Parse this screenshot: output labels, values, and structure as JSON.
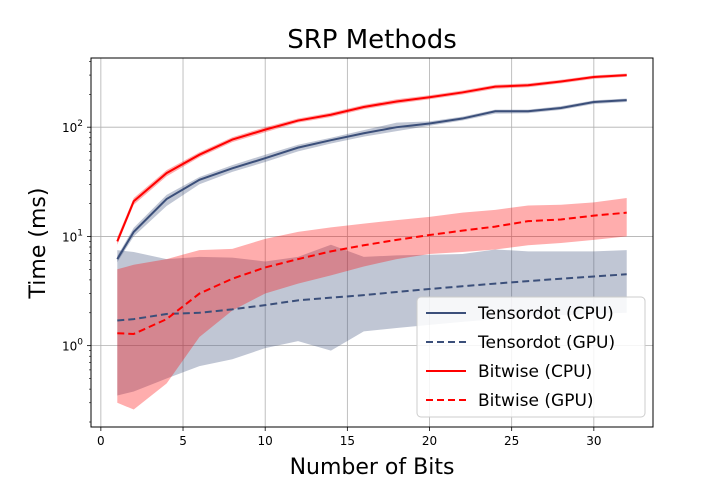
{
  "chart_data": {
    "type": "line",
    "title": "SRP Methods",
    "xlabel": "Number of Bits",
    "ylabel": "Time (ms)",
    "xlim": [
      -0.6,
      33.6
    ],
    "ylim": [
      0.18,
      430
    ],
    "yscale": "log",
    "grid": true,
    "legend_position": "lower-right",
    "x_ticks": [
      0,
      5,
      10,
      15,
      20,
      25,
      30
    ],
    "x_tick_labels": [
      "0",
      "5",
      "10",
      "15",
      "20",
      "25",
      "30"
    ],
    "y_ticks": [
      1,
      10,
      100
    ],
    "y_tick_base": "10",
    "y_tick_exponents": [
      "0",
      "1",
      "2"
    ],
    "x": [
      1,
      2,
      4,
      6,
      8,
      10,
      12,
      14,
      16,
      18,
      20,
      22,
      24,
      26,
      28,
      30,
      32
    ],
    "series": [
      {
        "name": "Tensordot (CPU)",
        "color": "#3b4f7a",
        "style": "solid",
        "values": [
          6.2,
          11,
          22,
          33,
          42,
          52,
          65,
          76,
          88,
          100,
          108,
          120,
          140,
          140,
          150,
          170,
          177
        ],
        "lower": [
          5.8,
          10,
          19,
          30,
          39,
          48,
          60,
          71,
          82,
          92,
          103,
          115,
          133,
          134,
          144,
          163,
          170
        ],
        "upper": [
          6.6,
          12,
          24,
          35,
          45,
          56,
          69,
          80,
          94,
          110,
          113,
          125,
          145,
          145,
          156,
          176,
          183
        ]
      },
      {
        "name": "Tensordot (GPU)",
        "color": "#3b4f7a",
        "style": "dashed",
        "values": [
          1.7,
          1.75,
          1.95,
          2.0,
          2.15,
          2.35,
          2.6,
          2.75,
          2.9,
          3.1,
          3.3,
          3.5,
          3.7,
          3.9,
          4.1,
          4.3,
          4.5
        ],
        "lower": [
          0.35,
          0.38,
          0.5,
          0.65,
          0.75,
          0.95,
          1.1,
          0.9,
          1.35,
          1.45,
          1.55,
          1.65,
          1.75,
          1.85,
          1.9,
          1.95,
          2.0
        ],
        "upper": [
          7.5,
          7.2,
          6.2,
          6.5,
          6.4,
          5.9,
          6.5,
          8.4,
          6.5,
          6.7,
          6.8,
          6.9,
          7.6,
          7.3,
          7.3,
          7.3,
          7.5
        ]
      },
      {
        "name": "Bitwise (CPU)",
        "color": "#ff0000",
        "style": "solid",
        "values": [
          9,
          21,
          38,
          56,
          77,
          95,
          115,
          130,
          153,
          172,
          188,
          208,
          235,
          242,
          262,
          288,
          300
        ],
        "lower": [
          8.4,
          19.5,
          35.5,
          53,
          73,
          90,
          110,
          124,
          146,
          164,
          180,
          199,
          225,
          232,
          252,
          277,
          290
        ],
        "upper": [
          9.8,
          22.5,
          40.5,
          59,
          81,
          100,
          120,
          136,
          160,
          180,
          196,
          217,
          245,
          252,
          272,
          298,
          310
        ]
      },
      {
        "name": "Bitwise (GPU)",
        "color": "#ff0000",
        "style": "dashed",
        "values": [
          1.3,
          1.28,
          1.75,
          3.0,
          4.1,
          5.2,
          6.2,
          7.3,
          8.3,
          9.3,
          10.3,
          11.3,
          12.3,
          13.8,
          14.3,
          15.5,
          16.5
        ],
        "lower": [
          0.3,
          0.26,
          0.45,
          1.2,
          2.1,
          3.0,
          3.7,
          4.4,
          5.3,
          6.2,
          6.9,
          7.2,
          7.6,
          8.3,
          8.7,
          9.3,
          10.0
        ],
        "upper": [
          5.0,
          5.5,
          6.2,
          7.5,
          7.7,
          9.5,
          11.0,
          12.1,
          13.1,
          14.1,
          15.1,
          16.5,
          17.5,
          19.2,
          19.5,
          20.5,
          22.5
        ]
      }
    ]
  }
}
